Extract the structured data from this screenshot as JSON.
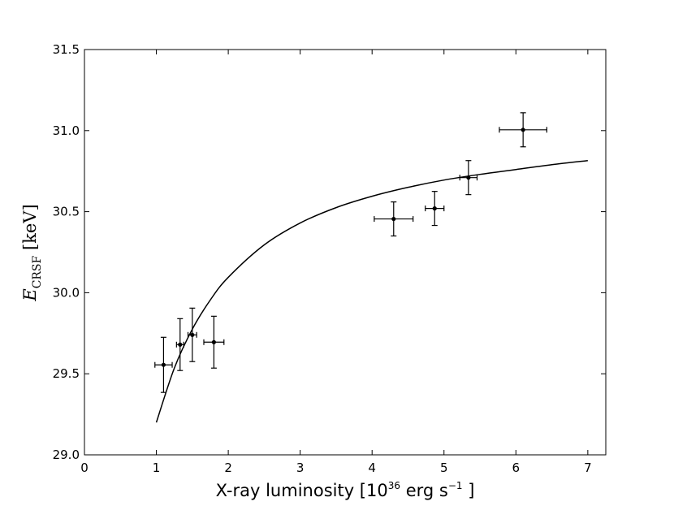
{
  "chart_data": {
    "type": "scatter",
    "xlabel": {
      "prefix": "X-ray luminosity [",
      "power_base": "10",
      "power_exp": "36",
      "unit": " erg s",
      "unit_exp": "−1",
      "suffix": " ]"
    },
    "ylabel": {
      "symbol": "E",
      "subscript": "CRSF",
      "unit": " [keV]"
    },
    "xlim": [
      0,
      7.25
    ],
    "ylim": [
      29.0,
      31.5
    ],
    "xticks": [
      0,
      1,
      2,
      3,
      4,
      5,
      6,
      7
    ],
    "xtick_labels": [
      "0",
      "1",
      "2",
      "3",
      "4",
      "5",
      "6",
      "7"
    ],
    "yticks": [
      29.0,
      29.5,
      30.0,
      30.5,
      31.0,
      31.5
    ],
    "ytick_labels": [
      "29.0",
      "29.5",
      "30.0",
      "30.5",
      "31.0",
      "31.5"
    ],
    "grid": false,
    "points": [
      {
        "x": 1.1,
        "y": 29.555,
        "xerr": 0.12,
        "yerr": 0.17
      },
      {
        "x": 1.33,
        "y": 29.68,
        "xerr": 0.05,
        "yerr": 0.16
      },
      {
        "x": 1.5,
        "y": 29.74,
        "xerr": 0.06,
        "yerr": 0.165
      },
      {
        "x": 1.8,
        "y": 29.695,
        "xerr": 0.14,
        "yerr": 0.16
      },
      {
        "x": 4.3,
        "y": 30.455,
        "xerr": 0.27,
        "yerr": 0.105
      },
      {
        "x": 4.87,
        "y": 30.52,
        "xerr": 0.13,
        "yerr": 0.105
      },
      {
        "x": 5.34,
        "y": 30.71,
        "xerr": 0.12,
        "yerr": 0.105
      },
      {
        "x": 6.1,
        "y": 31.005,
        "xerr": 0.33,
        "yerr": 0.105
      }
    ],
    "model_curve": {
      "x": [
        1.0,
        1.25,
        1.5,
        1.75,
        2.0,
        2.5,
        3.0,
        3.5,
        4.0,
        4.5,
        5.0,
        5.5,
        6.0,
        6.5,
        7.0
      ],
      "y": [
        29.2,
        29.535,
        29.775,
        29.955,
        30.095,
        30.295,
        30.43,
        30.525,
        30.595,
        30.65,
        30.695,
        30.73,
        30.76,
        30.79,
        30.815
      ]
    }
  }
}
